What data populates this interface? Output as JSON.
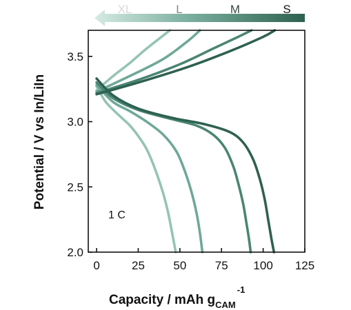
{
  "chart_data": {
    "type": "line",
    "title": "",
    "xlabel": "Capacity / mAh g",
    "xlabel_sub": "CAM",
    "xlabel_sup": "-1",
    "ylabel": "Potential / V vs In/LiIn",
    "xlim": [
      -5,
      125
    ],
    "ylim": [
      2.0,
      3.7
    ],
    "xticks": [
      0,
      25,
      50,
      75,
      100,
      125
    ],
    "yticks": [
      2.0,
      2.5,
      3.0,
      3.5
    ],
    "xtick_labels": [
      "0",
      "25",
      "50",
      "75",
      "100",
      "125"
    ],
    "ytick_labels": [
      "2.0",
      "2.5",
      "3.0",
      "3.5"
    ],
    "grid": false,
    "annotation": "1 C",
    "legend": {
      "placement": "top",
      "arrow_direction": "left",
      "labels": [
        "XL",
        "L",
        "M",
        "S"
      ]
    },
    "series": [
      {
        "name": "XL",
        "color": "#94c4b4",
        "charge": {
          "x": [
            0,
            10,
            20,
            30,
            40,
            44
          ],
          "y": [
            3.24,
            3.35,
            3.45,
            3.56,
            3.66,
            3.7
          ]
        },
        "discharge": {
          "x": [
            0,
            5,
            10,
            15,
            20,
            25,
            30,
            35,
            40,
            43,
            45,
            46.5,
            47.5
          ],
          "y": [
            3.27,
            3.16,
            3.09,
            3.03,
            2.97,
            2.89,
            2.79,
            2.64,
            2.45,
            2.3,
            2.17,
            2.07,
            2.0
          ]
        }
      },
      {
        "name": "L",
        "color": "#6ea898",
        "charge": {
          "x": [
            0,
            20,
            40,
            55,
            62
          ],
          "y": [
            3.23,
            3.35,
            3.48,
            3.62,
            3.7
          ]
        },
        "discharge": {
          "x": [
            0,
            10,
            20,
            30,
            40,
            48,
            53,
            57,
            60,
            62,
            63.5
          ],
          "y": [
            3.28,
            3.15,
            3.08,
            3.0,
            2.9,
            2.77,
            2.62,
            2.46,
            2.3,
            2.15,
            2.0
          ]
        }
      },
      {
        "name": "M",
        "color": "#4a8574",
        "charge": {
          "x": [
            0,
            25,
            50,
            70,
            85,
            93
          ],
          "y": [
            3.22,
            3.32,
            3.44,
            3.56,
            3.65,
            3.7
          ]
        },
        "discharge": {
          "x": [
            0,
            10,
            25,
            45,
            60,
            70,
            77,
            82,
            85,
            88,
            90,
            91.5,
            92.5
          ],
          "y": [
            3.3,
            3.18,
            3.09,
            3.02,
            2.97,
            2.9,
            2.8,
            2.66,
            2.53,
            2.37,
            2.22,
            2.1,
            2.0
          ]
        }
      },
      {
        "name": "S",
        "color": "#2f6150",
        "charge": {
          "x": [
            0,
            25,
            55,
            80,
            100,
            107
          ],
          "y": [
            3.21,
            3.3,
            3.42,
            3.54,
            3.65,
            3.7
          ]
        },
        "discharge": {
          "x": [
            0,
            10,
            25,
            45,
            65,
            80,
            88,
            94,
            98,
            101,
            103,
            105,
            106.5
          ],
          "y": [
            3.33,
            3.2,
            3.1,
            3.03,
            2.98,
            2.92,
            2.84,
            2.71,
            2.56,
            2.4,
            2.25,
            2.1,
            2.0
          ]
        }
      }
    ]
  }
}
